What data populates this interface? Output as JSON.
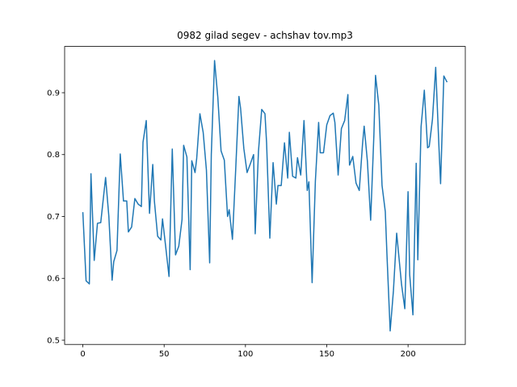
{
  "chart_data": {
    "type": "line",
    "title": "0982 gilad segev - achshav tov.mp3",
    "x": [
      0,
      2,
      4,
      5,
      7,
      9,
      11,
      14,
      16,
      18,
      19,
      21,
      23,
      25,
      27,
      28,
      30,
      32,
      34,
      36,
      37,
      39,
      41,
      43,
      44,
      46,
      48,
      49,
      51,
      53,
      55,
      57,
      59,
      61,
      62,
      64,
      66,
      67,
      69,
      70,
      72,
      74,
      76,
      78,
      79,
      81,
      83,
      85,
      87,
      89,
      90,
      92,
      94,
      96,
      97,
      99,
      101,
      103,
      105,
      106,
      108,
      110,
      112,
      113,
      115,
      117,
      119,
      120,
      122,
      124,
      126,
      127,
      129,
      131,
      132,
      134,
      136,
      138,
      139,
      141,
      143,
      145,
      146,
      148,
      150,
      152,
      154,
      155,
      157,
      159,
      161,
      163,
      164,
      166,
      168,
      170,
      172,
      173,
      175,
      177,
      179,
      180,
      182,
      184,
      186,
      187,
      189,
      191,
      193,
      194,
      196,
      198,
      200,
      201,
      203,
      205,
      206,
      208,
      210,
      212,
      213,
      215,
      217,
      219,
      220,
      222,
      224
    ],
    "values": [
      0.707,
      0.596,
      0.591,
      0.769,
      0.629,
      0.689,
      0.69,
      0.763,
      0.7,
      0.597,
      0.627,
      0.645,
      0.801,
      0.725,
      0.725,
      0.675,
      0.683,
      0.729,
      0.72,
      0.716,
      0.82,
      0.855,
      0.705,
      0.784,
      0.725,
      0.668,
      0.662,
      0.696,
      0.65,
      0.603,
      0.809,
      0.638,
      0.652,
      0.695,
      0.815,
      0.796,
      0.614,
      0.79,
      0.771,
      0.793,
      0.866,
      0.836,
      0.775,
      0.625,
      0.8,
      0.952,
      0.893,
      0.806,
      0.791,
      0.7,
      0.711,
      0.663,
      0.776,
      0.894,
      0.875,
      0.81,
      0.771,
      0.785,
      0.8,
      0.672,
      0.805,
      0.873,
      0.866,
      0.819,
      0.665,
      0.787,
      0.72,
      0.75,
      0.75,
      0.819,
      0.762,
      0.836,
      0.765,
      0.762,
      0.795,
      0.767,
      0.855,
      0.742,
      0.756,
      0.593,
      0.757,
      0.852,
      0.803,
      0.803,
      0.848,
      0.863,
      0.867,
      0.852,
      0.767,
      0.842,
      0.855,
      0.897,
      0.783,
      0.797,
      0.754,
      0.742,
      0.817,
      0.846,
      0.789,
      0.694,
      0.833,
      0.928,
      0.88,
      0.75,
      0.708,
      0.64,
      0.515,
      0.58,
      0.673,
      0.645,
      0.59,
      0.551,
      0.74,
      0.606,
      0.541,
      0.786,
      0.63,
      0.845,
      0.904,
      0.811,
      0.813,
      0.857,
      0.941,
      0.812,
      0.753,
      0.927,
      0.917
    ],
    "color": "#1f77b4",
    "xlim": [
      -11.2,
      235.2
    ],
    "xticks": [
      0,
      50,
      100,
      150,
      200
    ],
    "ylim": [
      0.4932,
      0.9748
    ],
    "yticks": [
      0.5,
      0.6,
      0.7,
      0.8,
      0.9
    ]
  }
}
